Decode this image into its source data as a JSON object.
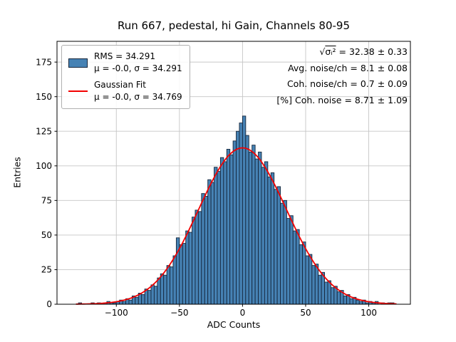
{
  "title": "Run 667, pedestal, hi Gain, Channels 80-95",
  "axis": {
    "xlabel": "ADC Counts",
    "ylabel": "Entries"
  },
  "legend": {
    "hist_label_1": "RMS = 34.291",
    "hist_label_2": "μ = -0.0, σ = 34.291",
    "fit_label_1": "Gaussian Fit",
    "fit_label_2": "μ = -0.0, σ = 34.769"
  },
  "annotations": {
    "sqrt_prefix": "√",
    "sqrt_expr": "σᵢ²",
    "sqrt_rest": " = 32.38 ± 0.33",
    "line2": "Avg. noise/ch = 8.1 ± 0.08",
    "line3": "Coh. noise/ch = 0.7 ± 0.09",
    "line4": "[%] Coh. noise = 8.71 ± 1.09"
  },
  "chart_data": {
    "type": "bar",
    "subtype": "histogram",
    "title": "Run 667, pedestal, hi Gain, Channels 80-95",
    "xlabel": "ADC Counts",
    "ylabel": "Entries",
    "xlim": [
      -147,
      133
    ],
    "ylim": [
      0,
      190
    ],
    "xticks": [
      -100,
      -50,
      0,
      50,
      100
    ],
    "yticks": [
      0,
      25,
      50,
      75,
      100,
      125,
      150,
      175
    ],
    "grid": true,
    "legend_position": "upper left",
    "bar_color": "#4682b4",
    "bar_edge_color": "#15263c",
    "bin_start": -130,
    "bin_width": 2.5,
    "counts": [
      1,
      0,
      0,
      0,
      1,
      0,
      1,
      0,
      1,
      2,
      1,
      1,
      2,
      3,
      2,
      4,
      3,
      6,
      5,
      8,
      7,
      11,
      10,
      14,
      13,
      19,
      22,
      21,
      28,
      27,
      35,
      48,
      43,
      44,
      53,
      52,
      63,
      68,
      67,
      80,
      78,
      90,
      88,
      99,
      96,
      106,
      103,
      112,
      108,
      118,
      125,
      131,
      136,
      122,
      110,
      115,
      105,
      110,
      99,
      103,
      92,
      95,
      83,
      85,
      73,
      75,
      62,
      64,
      53,
      54,
      43,
      45,
      35,
      36,
      28,
      29,
      21,
      23,
      16,
      17,
      12,
      13,
      9,
      10,
      6,
      7,
      4,
      5,
      3,
      2,
      3,
      1,
      2,
      1,
      2,
      0,
      1,
      0,
      1,
      1
    ],
    "fit": {
      "type": "gaussian",
      "amplitude": 113,
      "mu": 0.0,
      "sigma": 34.769,
      "color": "#f20000",
      "x_range": [
        -132,
        122
      ]
    }
  }
}
